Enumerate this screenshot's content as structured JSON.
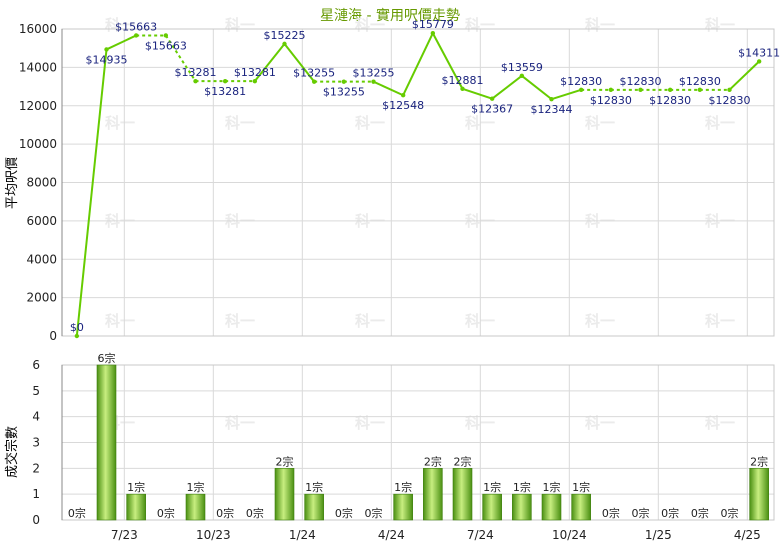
{
  "title": "星漣海 - 實用呎價走勢",
  "watermark": "科一",
  "colors": {
    "line": "#66cc00",
    "title": "#669900",
    "grid": "#d9d9d9",
    "barDark": "#4a8f12",
    "barLight": "#c8ee80"
  },
  "chart_data": [
    {
      "type": "line",
      "ylabel": "平均呎價",
      "ylim": [
        0,
        16000
      ],
      "yticks": [
        "0",
        "2000",
        "4000",
        "6000",
        "8000",
        "10000",
        "12000",
        "14000",
        "16000"
      ],
      "grid": true,
      "values": [
        0,
        14935,
        15663,
        15663,
        13281,
        13281,
        13281,
        15225,
        13255,
        13255,
        13255,
        12548,
        15779,
        12881,
        12367,
        13559,
        12344,
        12830,
        12830,
        12830,
        12830,
        12830,
        12830,
        14311
      ],
      "labels": [
        "$0",
        "$14935",
        "$15663",
        "$15663",
        "$13281",
        "$13281",
        "$13281",
        "$15225",
        "$13255",
        "$13255",
        "$13255",
        "$12548",
        "$15779",
        "$12881",
        "$12367",
        "$13559",
        "$12344",
        "$12830",
        "$12830",
        "$12830",
        "$12830",
        "$12830",
        "$12830",
        "$14311"
      ],
      "interpolated": [
        false,
        false,
        false,
        true,
        false,
        true,
        false,
        false,
        false,
        true,
        false,
        false,
        false,
        false,
        false,
        false,
        false,
        false,
        true,
        true,
        true,
        true,
        false,
        false
      ]
    },
    {
      "type": "bar",
      "ylabel": "成交宗數",
      "ylim": [
        0,
        6
      ],
      "yticks": [
        "0",
        "1",
        "2",
        "3",
        "4",
        "5",
        "6"
      ],
      "grid": true,
      "values": [
        0,
        6,
        1,
        0,
        1,
        0,
        0,
        2,
        1,
        0,
        0,
        1,
        2,
        2,
        1,
        1,
        1,
        1,
        0,
        0,
        0,
        0,
        0,
        2
      ],
      "labels": [
        "0宗",
        "6宗",
        "1宗",
        "0宗",
        "1宗",
        "0宗",
        "0宗",
        "2宗",
        "1宗",
        "0宗",
        "0宗",
        "1宗",
        "2宗",
        "2宗",
        "1宗",
        "1宗",
        "1宗",
        "1宗",
        "0宗",
        "0宗",
        "0宗",
        "0宗",
        "0宗",
        "2宗"
      ],
      "xticks": [
        "7/23",
        "10/23",
        "1/24",
        "4/24",
        "7/24",
        "10/24",
        "1/25",
        "4/25"
      ]
    }
  ]
}
